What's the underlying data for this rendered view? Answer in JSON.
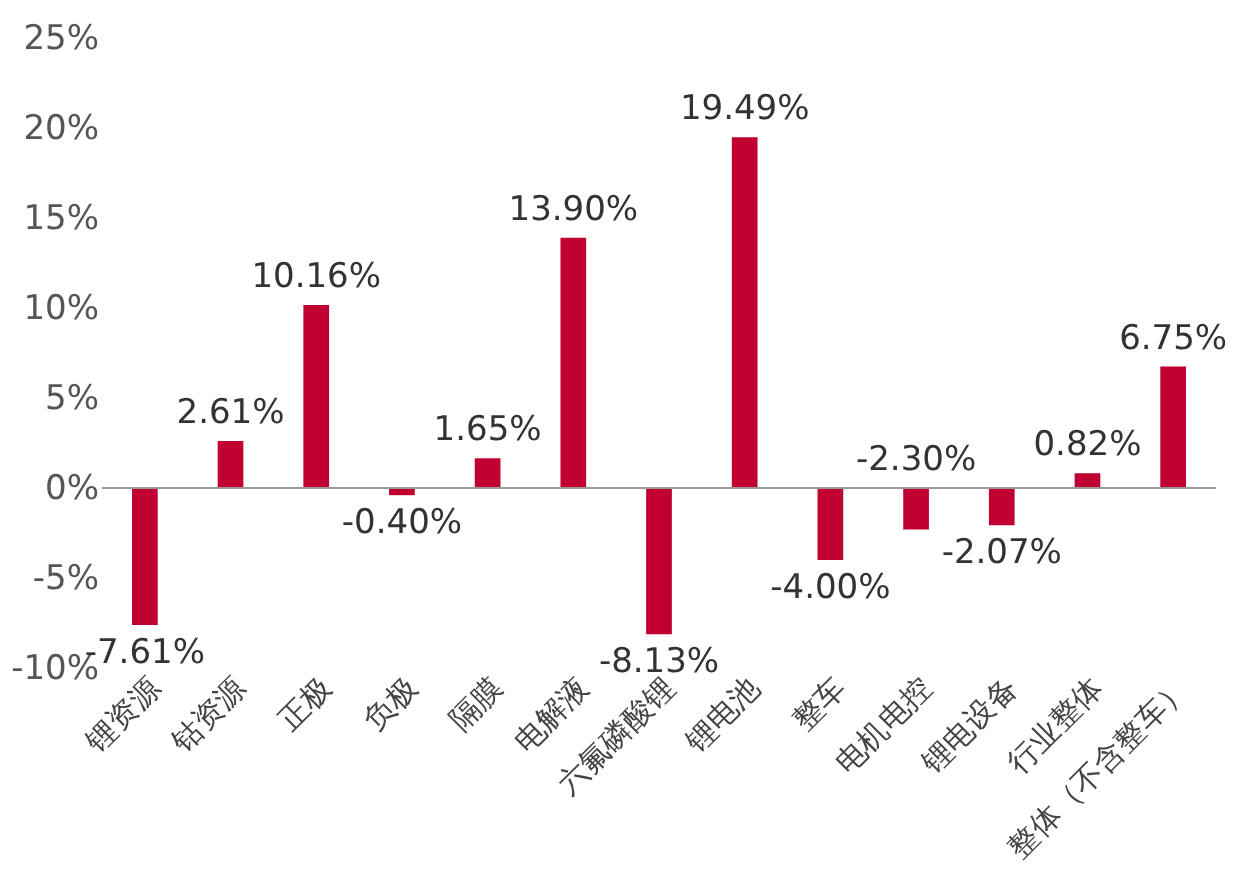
{
  "chart_data": {
    "type": "bar",
    "categories": [
      "锂资源",
      "钴资源",
      "正极",
      "负极",
      "隔膜",
      "电解液",
      "六氟磷酸锂",
      "锂电池",
      "整车",
      "电机电控",
      "锂电设备",
      "行业整体",
      "整体（不含整车）"
    ],
    "values": [
      -7.61,
      2.61,
      10.16,
      -0.4,
      1.65,
      13.9,
      -8.13,
      19.49,
      -4.0,
      -2.3,
      -2.07,
      0.82,
      6.75
    ],
    "value_labels": [
      "-7.61%",
      "2.61%",
      "10.16%",
      "-0.40%",
      "1.65%",
      "13.90%",
      "-8.13%",
      "19.49%",
      "-4.00%",
      "-2.30%",
      "-2.07%",
      "0.82%",
      "6.75%"
    ],
    "color": "#c00030",
    "ylim": [
      -10,
      25
    ],
    "yticks": [
      {
        "value": -10,
        "label": "-10%"
      },
      {
        "value": -5,
        "label": "-5%"
      },
      {
        "value": 0,
        "label": "0%"
      },
      {
        "value": 5,
        "label": "5%"
      },
      {
        "value": 10,
        "label": "10%"
      },
      {
        "value": 15,
        "label": "15%"
      },
      {
        "value": 20,
        "label": "20%"
      },
      {
        "value": 25,
        "label": "25%"
      }
    ]
  }
}
